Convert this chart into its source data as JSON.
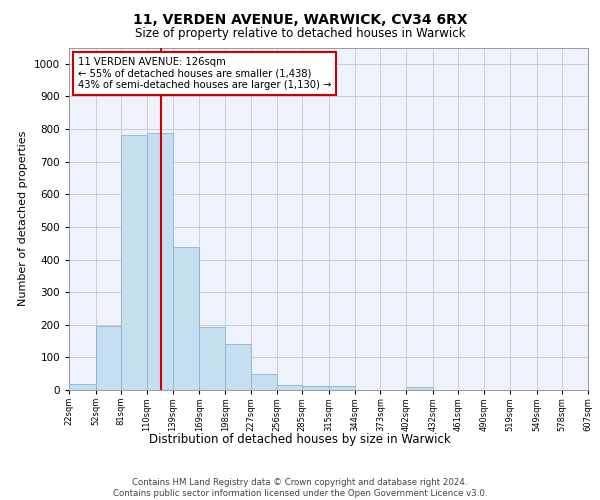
{
  "title_line1": "11, VERDEN AVENUE, WARWICK, CV34 6RX",
  "title_line2": "Size of property relative to detached houses in Warwick",
  "xlabel": "Distribution of detached houses by size in Warwick",
  "ylabel": "Number of detached properties",
  "bin_edges": [
    22,
    52,
    81,
    110,
    139,
    169,
    198,
    227,
    256,
    285,
    315,
    344,
    373,
    402,
    432,
    461,
    490,
    519,
    549,
    578,
    607
  ],
  "bar_heights": [
    18,
    197,
    783,
    787,
    437,
    193,
    140,
    48,
    15,
    13,
    13,
    0,
    0,
    10,
    0,
    0,
    0,
    0,
    0,
    0
  ],
  "bar_color": "#c6dff0",
  "bar_edge_color": "#8ab4d4",
  "vline_x": 126,
  "vline_color": "#cc0000",
  "annotation_text": "11 VERDEN AVENUE: 126sqm\n← 55% of detached houses are smaller (1,438)\n43% of semi-detached houses are larger (1,130) →",
  "annotation_box_facecolor": "#ffffff",
  "annotation_box_edgecolor": "#cc0000",
  "ylim": [
    0,
    1050
  ],
  "yticks": [
    0,
    100,
    200,
    300,
    400,
    500,
    600,
    700,
    800,
    900,
    1000
  ],
  "tick_labels": [
    "22sqm",
    "52sqm",
    "81sqm",
    "110sqm",
    "139sqm",
    "169sqm",
    "198sqm",
    "227sqm",
    "256sqm",
    "285sqm",
    "315sqm",
    "344sqm",
    "373sqm",
    "402sqm",
    "432sqm",
    "461sqm",
    "490sqm",
    "519sqm",
    "549sqm",
    "578sqm",
    "607sqm"
  ],
  "footer_text": "Contains HM Land Registry data © Crown copyright and database right 2024.\nContains public sector information licensed under the Open Government Licence v3.0.",
  "bg_color": "#eef2fc",
  "grid_color": "#c8c8c8"
}
